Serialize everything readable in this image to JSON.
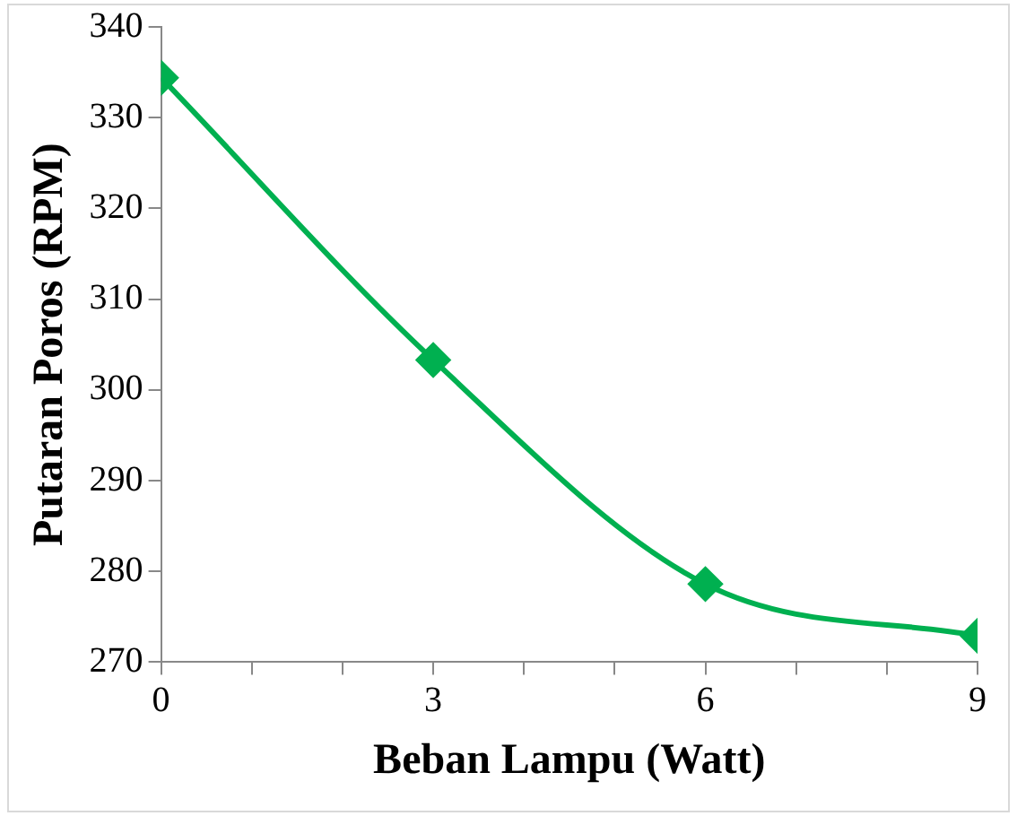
{
  "chart_data": {
    "type": "line",
    "xlabel": "Beban Lampu (Watt)",
    "ylabel": "Putaran Poros (RPM)",
    "x": [
      0,
      3,
      6,
      9
    ],
    "series": [
      {
        "color": "#00b050",
        "values": [
          334.4,
          303.3,
          278.6,
          272.9
        ]
      }
    ],
    "xlim": [
      0,
      9
    ],
    "xticks": [
      0,
      {
        "value": 1,
        "label": null
      },
      {
        "value": 2,
        "label": null
      },
      3,
      {
        "value": 4,
        "label": null
      },
      {
        "value": 5,
        "label": null
      },
      6,
      {
        "value": 7,
        "label": null
      },
      {
        "value": 8,
        "label": null
      },
      9
    ],
    "ylim": [
      270,
      340
    ],
    "yticks": [
      270,
      280,
      290,
      300,
      310,
      320,
      330,
      340
    ],
    "grid": false,
    "legend": false,
    "marker": "diamond",
    "line_style": "solid"
  }
}
